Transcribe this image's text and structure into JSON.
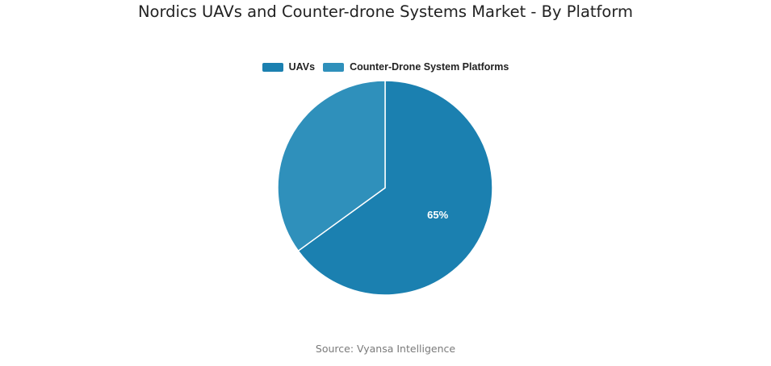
{
  "title": "Nordics UAVs and Counter-drone Systems Market - By Platform",
  "source": "Source: Vyansa Intelligence",
  "chart_data": {
    "type": "pie",
    "title": "Nordics UAVs and Counter-drone Systems Market - By Platform",
    "legend_position": "top",
    "slices": [
      {
        "name": "UAVs",
        "value": 65,
        "label": "65%",
        "color": "#1b80b0"
      },
      {
        "name": "Counter-Drone System Platforms",
        "value": 35,
        "label": "",
        "color": "#2f90bb"
      }
    ]
  }
}
